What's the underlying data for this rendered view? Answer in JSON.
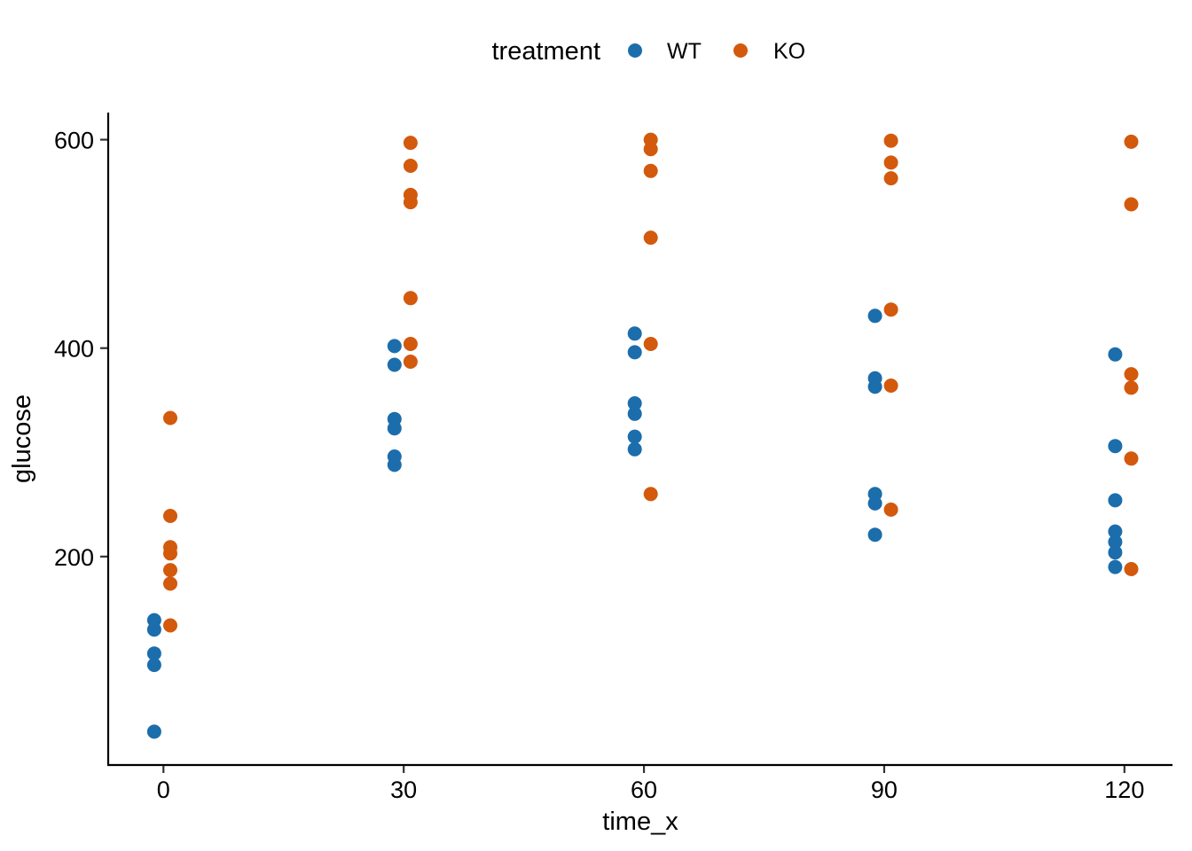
{
  "chart_data": {
    "type": "scatter",
    "title": "",
    "legend_title": "treatment",
    "legend_position": "top",
    "xlabel": "time_x",
    "ylabel": "glucose",
    "x_ticks": [
      0,
      30,
      60,
      90,
      120
    ],
    "y_ticks": [
      200,
      400,
      600
    ],
    "x_range": [
      -6.9,
      126.0
    ],
    "y_range": [
      0,
      626
    ],
    "grid": false,
    "point_radius_px": 8,
    "series": [
      {
        "name": "WT",
        "color": "#1c6dab",
        "x_dodge": -1.15,
        "points": [
          [
            0,
            139
          ],
          [
            0,
            130
          ],
          [
            0,
            107
          ],
          [
            0,
            96
          ],
          [
            0,
            32
          ],
          [
            30,
            402
          ],
          [
            30,
            384
          ],
          [
            30,
            332
          ],
          [
            30,
            323
          ],
          [
            30,
            296
          ],
          [
            30,
            288
          ],
          [
            60,
            414
          ],
          [
            60,
            396
          ],
          [
            60,
            347
          ],
          [
            60,
            337
          ],
          [
            60,
            315
          ],
          [
            60,
            303
          ],
          [
            90,
            431
          ],
          [
            90,
            371
          ],
          [
            90,
            363
          ],
          [
            90,
            260
          ],
          [
            90,
            251
          ],
          [
            90,
            221
          ],
          [
            120,
            394
          ],
          [
            120,
            306
          ],
          [
            120,
            254
          ],
          [
            120,
            224
          ],
          [
            120,
            214
          ],
          [
            120,
            204
          ],
          [
            120,
            190
          ]
        ]
      },
      {
        "name": "KO",
        "color": "#d3590d",
        "x_dodge": 0.85,
        "points": [
          [
            0,
            333
          ],
          [
            0,
            239
          ],
          [
            0,
            209
          ],
          [
            0,
            203
          ],
          [
            0,
            187
          ],
          [
            0,
            174
          ],
          [
            0,
            134
          ],
          [
            30,
            597
          ],
          [
            30,
            575
          ],
          [
            30,
            547
          ],
          [
            30,
            540
          ],
          [
            30,
            448
          ],
          [
            30,
            404
          ],
          [
            30,
            387
          ],
          [
            60,
            600
          ],
          [
            60,
            591
          ],
          [
            60,
            570
          ],
          [
            60,
            506
          ],
          [
            60,
            404
          ],
          [
            60,
            260
          ],
          [
            90,
            599
          ],
          [
            90,
            578
          ],
          [
            90,
            563
          ],
          [
            90,
            437
          ],
          [
            90,
            364
          ],
          [
            90,
            245
          ],
          [
            120,
            598
          ],
          [
            120,
            538
          ],
          [
            120,
            375
          ],
          [
            120,
            362
          ],
          [
            120,
            294
          ],
          [
            120,
            188
          ]
        ]
      }
    ]
  },
  "colors": {
    "axis_line": "#000000",
    "tick_mark": "#333333",
    "text": "#000000",
    "background": "#ffffff"
  }
}
